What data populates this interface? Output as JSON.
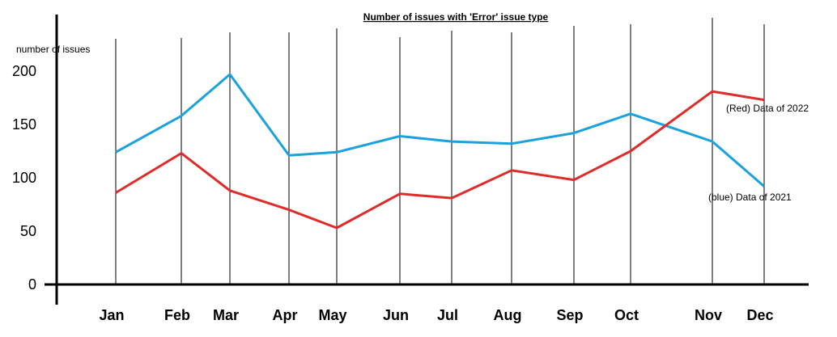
{
  "chart_data": {
    "type": "line",
    "title": "Number of issues with 'Error' issue type",
    "ylabel": "number of issues",
    "xlabel": "",
    "ylim": [
      0,
      200
    ],
    "yticks": [
      "0",
      "50",
      "100",
      "150",
      "200"
    ],
    "categories": [
      "Jan",
      "Feb",
      "Mar",
      "Apr",
      "May",
      "Jun",
      "Jul",
      "Aug",
      "Sep",
      "Oct",
      "Nov",
      "Dec"
    ],
    "grid": "vertical lines at each month",
    "series": [
      {
        "name": "(blue) Data of 2021",
        "color": "#1ba1de",
        "values": [
          124,
          158,
          197,
          121,
          124,
          139,
          134,
          132,
          142,
          160,
          134,
          92
        ]
      },
      {
        "name": "(Red) Data of 2022",
        "color": "#e02b2b",
        "values": [
          86,
          123,
          88,
          70,
          53,
          85,
          81,
          107,
          98,
          125,
          181,
          173
        ]
      }
    ]
  }
}
